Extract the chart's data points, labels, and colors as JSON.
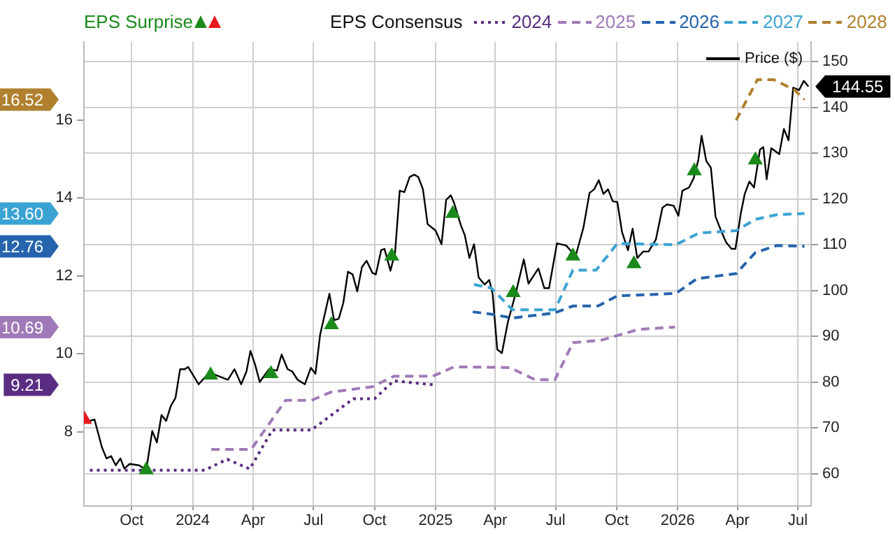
{
  "chart_data": {
    "type": "line",
    "legend": "top",
    "legend_title": "EPS Consensus",
    "annotations": [
      "16.52",
      "13.60",
      "12.76",
      "10.69",
      "9.21"
    ],
    "grid": true,
    "xlim": [
      "2023-07-21",
      "2026-07-21"
    ],
    "xticks": [
      {
        "value": "2023-10-01",
        "label": "Oct"
      },
      {
        "value": "2024-01-01",
        "label": "2024"
      },
      {
        "value": "2024-04-01",
        "label": "Apr"
      },
      {
        "value": "2024-07-01",
        "label": "Jul"
      },
      {
        "value": "2024-10-01",
        "label": "Oct"
      },
      {
        "value": "2025-01-01",
        "label": "2025"
      },
      {
        "value": "2025-04-01",
        "label": "Apr"
      },
      {
        "value": "2025-07-01",
        "label": "Jul"
      },
      {
        "value": "2025-10-01",
        "label": "Oct"
      },
      {
        "value": "2026-01-01",
        "label": "2026"
      },
      {
        "value": "2026-04-01",
        "label": "Apr"
      },
      {
        "value": "2026-07-01",
        "label": "Jul"
      }
    ],
    "ylim": [
      6.1,
      18.0
    ],
    "yticks": [
      8,
      10,
      12,
      14,
      16
    ],
    "y2lim": [
      52.9,
      154.3
    ],
    "y2ticks": [
      60,
      70,
      80,
      90,
      100,
      110,
      120,
      130,
      140,
      150
    ],
    "series": [
      {
        "name": "EPS Surprise",
        "type": "scatter",
        "axis": "y2",
        "marker": "triangle",
        "color": "#1a8a1a",
        "x": [
          "2023-10-23",
          "2024-01-28",
          "2024-04-28",
          "2024-07-28",
          "2024-10-27",
          "2025-01-27",
          "2025-04-28",
          "2025-07-27",
          "2025-10-27",
          "2026-01-26",
          "2026-04-28"
        ],
        "values": [
          60.8,
          81.5,
          81.8,
          92.5,
          107.5,
          116.8,
          99.5,
          107.5,
          105.8,
          126.1,
          128.5
        ]
      },
      {
        "type": "scatter",
        "axis": "y2",
        "marker": "triangle",
        "color": "#e8191b",
        "x": [
          "2023-07-22"
        ],
        "values": [
          71.8
        ]
      },
      {
        "name": "2024",
        "type": "line",
        "line_style": "dotted",
        "marker": "none",
        "color": "#5a2d82",
        "x": [
          "2023-07-30",
          "2024-01-19",
          "2024-02-22",
          "2024-03-27",
          "2024-04-30",
          "2024-06-28",
          "2024-08-30",
          "2024-10-01",
          "2024-10-30",
          "2024-12-28"
        ],
        "values": [
          7.02,
          7.02,
          7.3,
          7.05,
          8.05,
          8.05,
          8.85,
          8.85,
          9.31,
          9.21
        ]
      },
      {
        "name": "2025",
        "type": "line",
        "line_style": "dashed",
        "marker": "none",
        "color": "#a07ab8",
        "x": [
          "2024-01-29",
          "2024-03-29",
          "2024-05-20",
          "2024-06-28",
          "2024-07-27",
          "2024-09-28",
          "2024-10-30",
          "2024-12-28",
          "2025-01-29",
          "2025-04-23",
          "2025-05-31",
          "2025-06-30",
          "2025-07-27",
          "2025-09-07",
          "2025-11-03",
          "2025-12-28"
        ],
        "values": [
          7.55,
          7.55,
          8.81,
          8.81,
          9.02,
          9.16,
          9.43,
          9.43,
          9.67,
          9.65,
          9.34,
          9.34,
          10.29,
          10.35,
          10.63,
          10.69
        ]
      },
      {
        "name": "2026",
        "type": "line",
        "line_style": "dashed",
        "marker": "none",
        "color": "#2563ad",
        "x": [
          "2025-02-26",
          "2025-03-26",
          "2025-04-27",
          "2025-06-29",
          "2025-07-27",
          "2025-09-03",
          "2025-10-02",
          "2025-12-29",
          "2026-01-30",
          "2026-03-30",
          "2026-04-28",
          "2026-05-30",
          "2026-07-11"
        ],
        "values": [
          11.08,
          11.02,
          10.92,
          11.05,
          11.23,
          11.23,
          11.49,
          11.55,
          11.93,
          12.06,
          12.6,
          12.78,
          12.76
        ]
      },
      {
        "name": "2027",
        "type": "line",
        "line_style": "dashed",
        "marker": "none",
        "color": "#3ba3d3",
        "x": [
          "2025-02-28",
          "2025-03-26",
          "2025-04-27",
          "2025-06-30",
          "2025-07-27",
          "2025-08-31",
          "2025-10-02",
          "2025-12-29",
          "2026-02-02",
          "2026-03-30",
          "2026-04-28",
          "2026-05-30",
          "2026-07-11"
        ],
        "values": [
          11.78,
          11.69,
          11.13,
          11.13,
          12.15,
          12.15,
          12.83,
          12.8,
          13.1,
          13.16,
          13.45,
          13.57,
          13.6
        ]
      },
      {
        "name": "2028",
        "type": "line",
        "line_style": "dashed",
        "marker": "none",
        "color": "#b0802f",
        "x": [
          "2026-03-30",
          "2026-05-01",
          "2026-05-26",
          "2026-06-26",
          "2026-07-11"
        ],
        "values": [
          15.99,
          17.03,
          17.03,
          16.77,
          16.52
        ]
      },
      {
        "name": "Price ($)",
        "type": "line",
        "axis": "y2",
        "line_style": "solid",
        "marker": "none",
        "color": "#000000",
        "x": [
          "2023-07-27",
          "2023-08-06",
          "2023-08-17",
          "2023-08-24",
          "2023-08-31",
          "2023-09-07",
          "2023-09-14",
          "2023-09-20",
          "2023-09-28",
          "2023-10-12",
          "2023-10-23",
          "2023-11-01",
          "2023-11-08",
          "2023-11-15",
          "2023-11-22",
          "2023-11-29",
          "2023-12-06",
          "2023-12-13",
          "2023-12-20",
          "2023-12-25",
          "2024-01-10",
          "2024-01-26",
          "2024-02-09",
          "2024-02-23",
          "2024-03-04",
          "2024-03-14",
          "2024-03-22",
          "2024-03-28",
          "2024-04-04",
          "2024-04-11",
          "2024-04-25",
          "2024-05-07",
          "2024-05-14",
          "2024-05-23",
          "2024-05-30",
          "2024-06-07",
          "2024-06-18",
          "2024-06-27",
          "2024-07-04",
          "2024-07-11",
          "2024-07-25",
          "2024-08-01",
          "2024-08-08",
          "2024-08-15",
          "2024-08-22",
          "2024-08-29",
          "2024-09-05",
          "2024-09-12",
          "2024-09-19",
          "2024-09-28",
          "2024-10-03",
          "2024-10-11",
          "2024-10-16",
          "2024-10-25",
          "2024-11-01",
          "2024-11-08",
          "2024-11-15",
          "2024-11-23",
          "2024-11-30",
          "2024-12-06",
          "2024-12-13",
          "2024-12-20",
          "2025-01-01",
          "2025-01-10",
          "2025-01-17",
          "2025-01-24",
          "2025-01-29",
          "2025-02-08",
          "2025-02-14",
          "2025-02-21",
          "2025-02-28",
          "2025-03-07",
          "2025-03-16",
          "2025-03-23",
          "2025-03-28",
          "2025-04-04",
          "2025-04-11",
          "2025-04-20",
          "2025-05-02",
          "2025-05-14",
          "2025-05-21",
          "2025-06-05",
          "2025-06-14",
          "2025-06-21",
          "2025-07-03",
          "2025-07-17",
          "2025-07-31",
          "2025-08-12",
          "2025-08-21",
          "2025-08-28",
          "2025-09-04",
          "2025-09-11",
          "2025-09-18",
          "2025-09-25",
          "2025-10-02",
          "2025-10-09",
          "2025-10-18",
          "2025-10-25",
          "2025-11-01",
          "2025-11-10",
          "2025-11-18",
          "2025-11-29",
          "2025-12-09",
          "2025-12-16",
          "2025-12-26",
          "2026-01-02",
          "2026-01-08",
          "2026-01-18",
          "2026-01-25",
          "2026-02-01",
          "2026-02-06",
          "2026-02-13",
          "2026-02-20",
          "2026-02-27",
          "2026-03-08",
          "2026-03-15",
          "2026-03-23",
          "2026-03-29",
          "2026-04-06",
          "2026-04-12",
          "2026-04-19",
          "2026-04-26",
          "2026-05-05",
          "2026-05-10",
          "2026-05-15",
          "2026-05-22",
          "2026-06-03",
          "2026-06-10",
          "2026-06-17",
          "2026-06-24",
          "2026-07-03",
          "2026-07-10",
          "2026-07-17"
        ],
        "values": [
          71.4,
          71.8,
          65.8,
          63.3,
          63.8,
          61.8,
          63.3,
          61.1,
          62.1,
          61.8,
          60.8,
          69.3,
          66.8,
          72.8,
          71.5,
          74.8,
          76.5,
          82.8,
          82.8,
          83.3,
          79.5,
          82.1,
          81.3,
          80.5,
          82.8,
          79.5,
          82.3,
          86.8,
          83.8,
          80.0,
          82.8,
          82.5,
          86.0,
          82.8,
          82.3,
          80.5,
          79.5,
          83.1,
          81.8,
          90.3,
          99.3,
          93.5,
          93.8,
          97.3,
          104.1,
          103.5,
          99.8,
          105.1,
          106.5,
          103.8,
          103.5,
          108.8,
          109.1,
          104.3,
          108.3,
          121.8,
          121.5,
          124.8,
          125.3,
          124.8,
          122.1,
          114.5,
          113.1,
          110.1,
          119.8,
          120.8,
          119.1,
          114.3,
          112.1,
          107.1,
          110.1,
          102.8,
          101.3,
          102.3,
          99.3,
          87.1,
          86.3,
          93.1,
          99.5,
          106.8,
          101.5,
          104.8,
          100.5,
          100.5,
          110.3,
          109.8,
          107.5,
          113.8,
          121.3,
          122.1,
          124.1,
          121.1,
          122.1,
          119.5,
          119.3,
          112.8,
          108.8,
          113.5,
          107.1,
          108.5,
          108.5,
          111.1,
          118.1,
          118.8,
          118.5,
          116.3,
          121.8,
          122.5,
          124.5,
          128.5,
          133.8,
          128.3,
          126.8,
          116.1,
          112.8,
          110.5,
          109.1,
          109.1,
          116.8,
          121.1,
          123.8,
          122.5,
          130.8,
          131.3,
          124.3,
          131.1,
          129.8,
          135.3,
          132.8,
          144.3,
          143.8,
          145.8,
          144.55
        ],
        "value_labels": [
          null,
          null,
          null,
          null,
          null,
          null,
          null,
          null,
          null,
          null,
          null,
          null,
          null,
          null,
          null,
          null,
          null,
          null,
          null,
          null,
          null,
          null,
          null,
          null,
          null,
          null,
          null,
          null,
          null,
          null,
          null,
          null,
          null,
          null,
          null,
          null,
          null,
          null,
          null,
          null,
          null,
          null,
          null,
          null,
          null,
          null,
          null,
          null,
          null,
          null,
          null,
          null,
          null,
          null,
          null,
          null,
          null,
          null,
          null,
          null,
          null,
          null,
          null,
          null,
          null,
          null,
          null,
          null,
          null,
          null,
          null,
          null,
          null,
          null,
          null,
          null,
          null,
          null,
          null,
          null,
          null,
          null,
          null,
          null,
          null,
          null,
          null,
          null,
          null,
          null,
          null,
          null,
          null,
          null,
          null,
          null,
          null,
          null,
          null,
          null,
          null,
          null,
          null,
          null,
          null,
          null,
          null,
          null,
          null,
          null,
          null,
          null,
          null,
          null,
          null,
          null,
          null,
          null,
          null,
          null,
          null,
          null,
          null,
          null,
          null,
          null,
          null,
          null,
          null,
          null,
          null,
          null,
          "144.55"
        ]
      }
    ]
  }
}
